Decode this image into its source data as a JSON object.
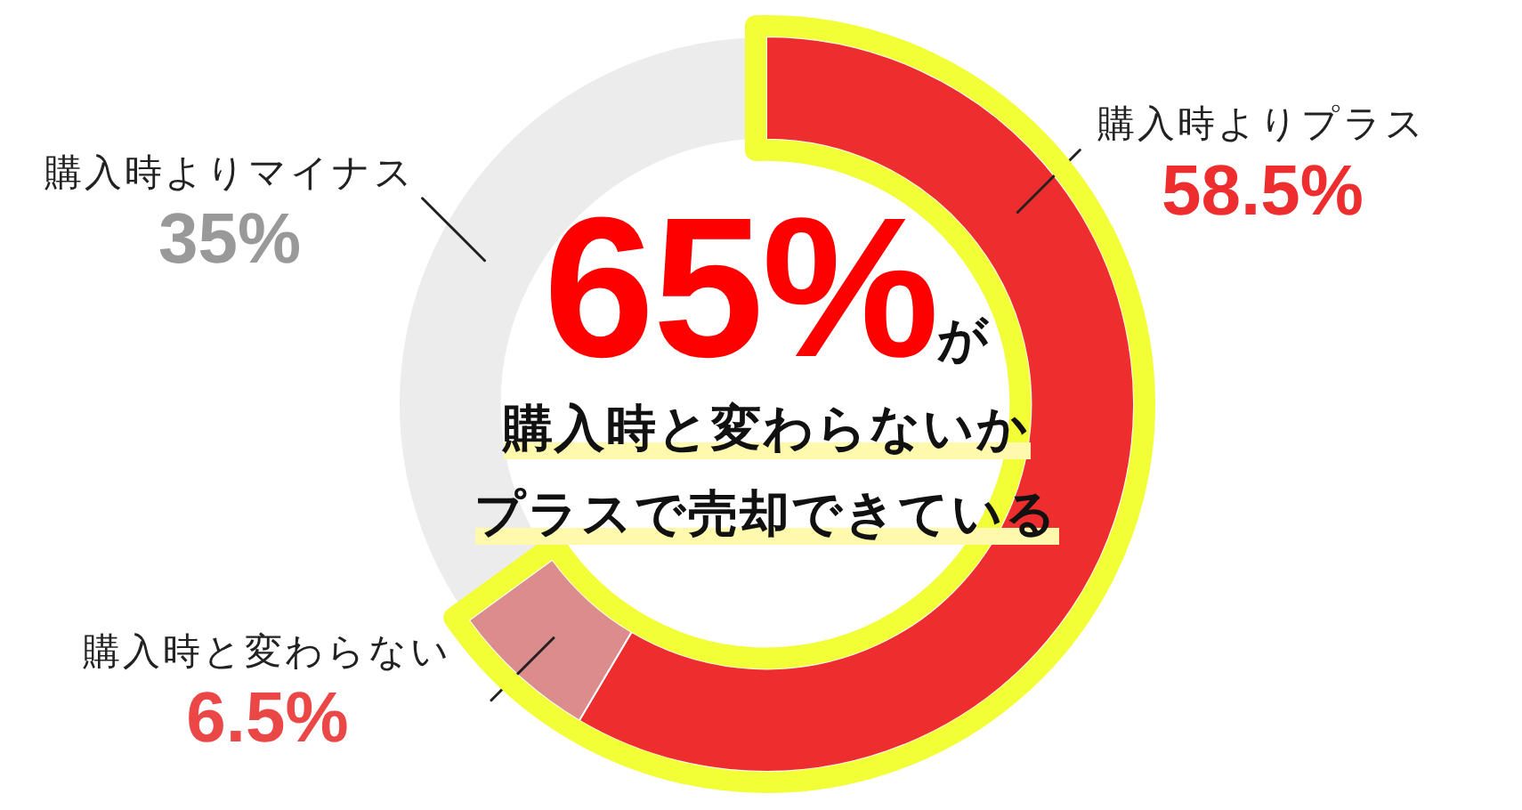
{
  "chart_data": {
    "type": "donut",
    "title": "65%が",
    "subtitle": "購入時と変わらないか",
    "annotations": [
      "プラスで売却できている"
    ],
    "categories": [
      "購入時よりプラス",
      "購入時と変わらない",
      "購入時よりマイナス"
    ],
    "values": [
      58.5,
      6.5,
      35
    ],
    "colors": [
      "#ee2e2e",
      "#dc8c8c",
      "#ececec"
    ],
    "value_labels": [
      "58.5%",
      "6.5%",
      "35%"
    ],
    "legend": false
  }
}
